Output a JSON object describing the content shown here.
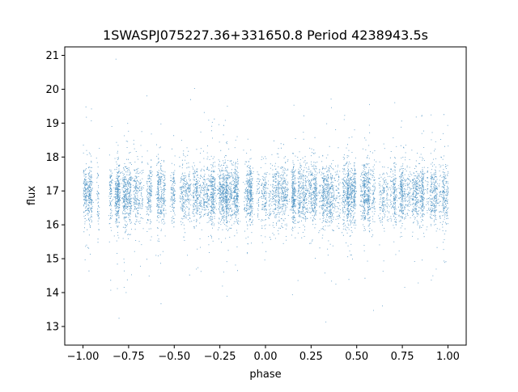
{
  "chart_data": {
    "type": "scatter",
    "title": "1SWASPJ075227.36+331650.8 Period 4238943.5s",
    "xlabel": "phase",
    "ylabel": "flux",
    "xlim": [
      -1.1,
      1.1
    ],
    "ylim": [
      12.45,
      21.25
    ],
    "xticks": [
      -1.0,
      -0.75,
      -0.5,
      -0.25,
      0.0,
      0.25,
      0.5,
      0.75,
      1.0
    ],
    "xtick_labels": [
      "−1.00",
      "−0.75",
      "−0.50",
      "−0.25",
      "0.00",
      "0.25",
      "0.50",
      "0.75",
      "1.00"
    ],
    "yticks": [
      13,
      14,
      15,
      16,
      17,
      18,
      19,
      20,
      21
    ],
    "ytick_labels": [
      "13",
      "14",
      "15",
      "16",
      "17",
      "18",
      "19",
      "20",
      "21"
    ],
    "grid": false,
    "legend": "none",
    "point_color": "#1f77b4",
    "series": [
      {
        "x_range": [
          -1.0,
          1.0
        ],
        "y_core_range": [
          15.9,
          18.0
        ],
        "y_full_range": [
          12.8,
          20.9
        ],
        "y_center": 16.9,
        "point_count_approx": 60000
      }
    ]
  }
}
